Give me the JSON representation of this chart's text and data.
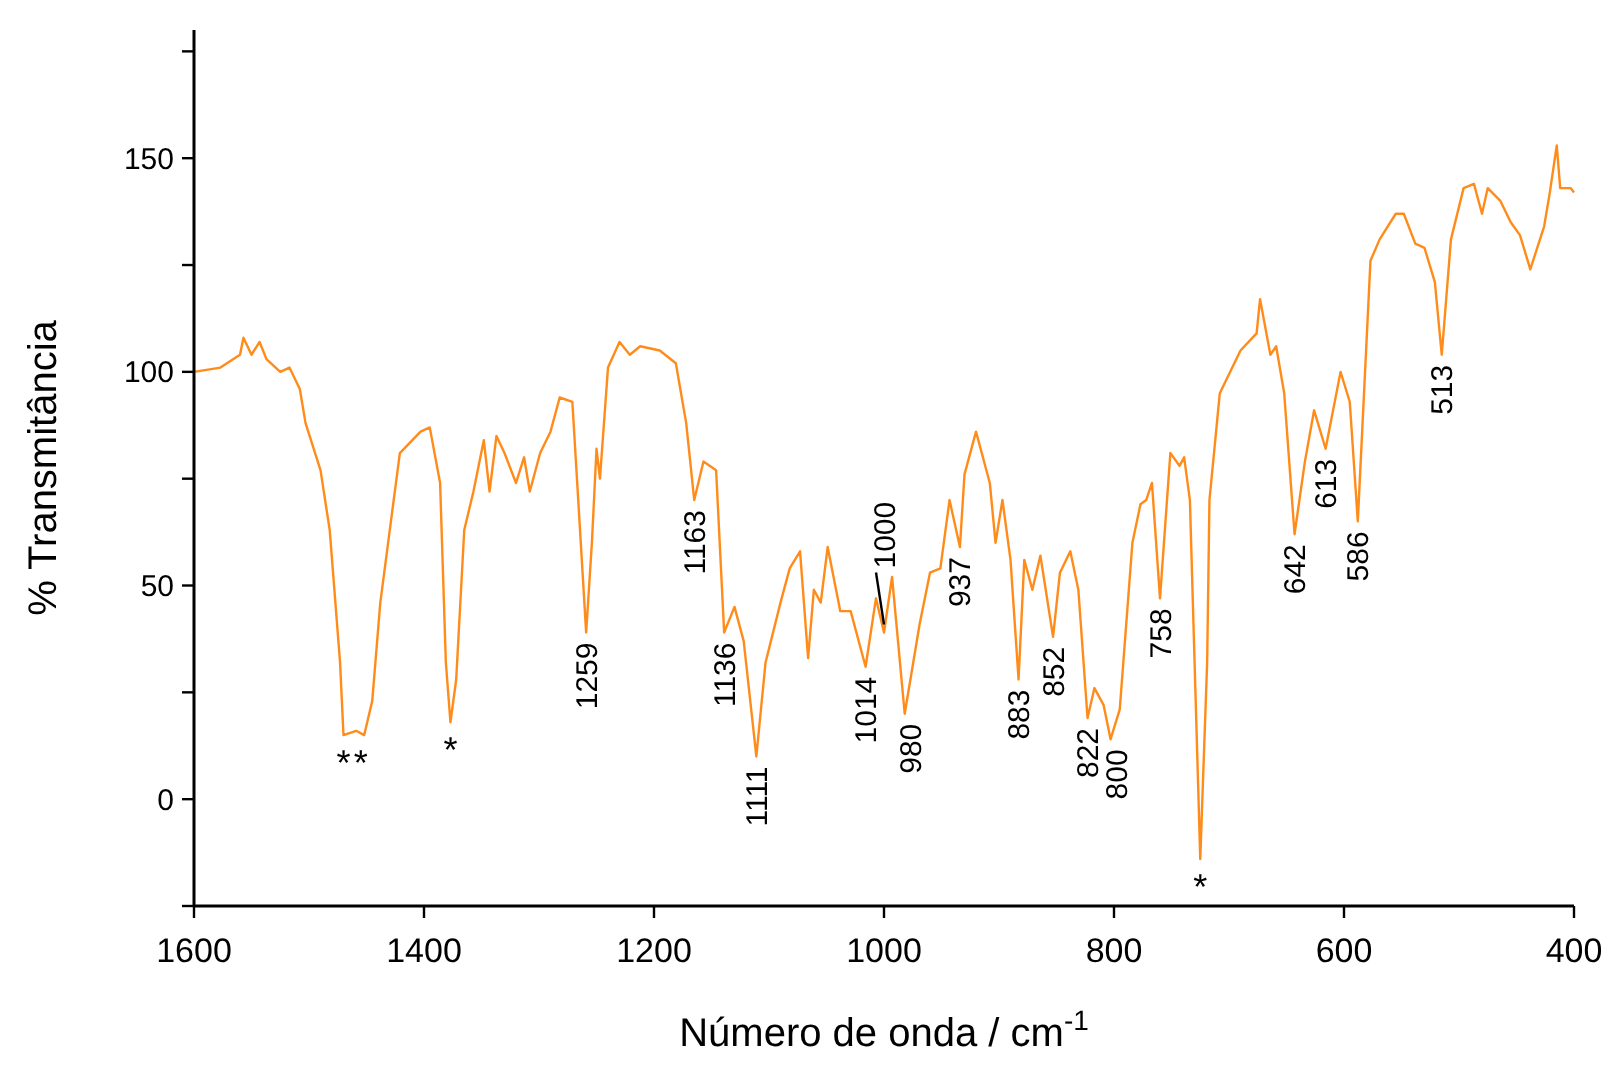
{
  "chart_data": {
    "type": "line",
    "xlabel": "Número de onda / cm$^{-1}$",
    "ylabel": "% Transmitância",
    "xlim": [
      1600,
      400
    ],
    "xticks": [
      1600,
      1400,
      1200,
      1000,
      800,
      600,
      400
    ],
    "ylim": [
      -25,
      180
    ],
    "yticks": [
      {
        "value": -25,
        "label": null
      },
      0,
      {
        "value": 25,
        "label": null
      },
      50,
      {
        "value": 75,
        "label": null
      },
      100,
      {
        "value": 125,
        "label": null
      },
      150,
      {
        "value": 175,
        "label": null
      }
    ],
    "marker": "none",
    "line_style": "solid",
    "series": [
      {
        "color": "#ff8c1a",
        "x": [
          1600,
          1577,
          1560,
          1557,
          1550,
          1543,
          1537,
          1525,
          1517,
          1508,
          1503,
          1490,
          1482,
          1473,
          1470,
          1459,
          1452,
          1445,
          1438,
          1421,
          1403,
          1395,
          1386,
          1381,
          1377,
          1372,
          1365,
          1357,
          1348,
          1343,
          1337,
          1330,
          1320,
          1313,
          1308,
          1299,
          1290,
          1282,
          1271,
          1259,
          1254,
          1250,
          1247,
          1240,
          1230,
          1221,
          1212,
          1195,
          1181,
          1172,
          1165,
          1157,
          1146,
          1139,
          1130,
          1122,
          1111,
          1103,
          1090,
          1082,
          1073,
          1066,
          1061,
          1055,
          1049,
          1038,
          1029,
          1016,
          1007,
          1000,
          993,
          982,
          969,
          960,
          951,
          943,
          934,
          930,
          920,
          908,
          903,
          897,
          890,
          883,
          878,
          871,
          864,
          853,
          847,
          838,
          831,
          823,
          817,
          809,
          803,
          795,
          784,
          777,
          772,
          767,
          760,
          751,
          743,
          739,
          734,
          725,
          719,
          717,
          708,
          690,
          676,
          673,
          664,
          659,
          652,
          643,
          634,
          626,
          616,
          603,
          595,
          588,
          577,
          569,
          555,
          548,
          538,
          530,
          521,
          515,
          507,
          496,
          487,
          480,
          475,
          464,
          455,
          447,
          438,
          426,
          421,
          415,
          412,
          403,
          400
        ],
        "values": [
          100,
          101,
          104,
          108,
          104,
          107,
          103,
          100,
          101,
          96,
          88,
          77,
          63,
          32,
          15,
          16,
          15,
          23,
          46,
          81,
          86,
          87,
          74,
          32,
          18,
          28,
          63,
          72,
          84,
          72,
          85,
          81,
          74,
          80,
          72,
          81,
          86,
          94,
          93,
          39,
          60,
          82,
          75,
          101,
          107,
          104,
          106,
          105,
          102,
          88,
          70,
          79,
          77,
          39,
          45,
          37,
          10,
          32,
          46,
          54,
          58,
          33,
          49,
          46,
          59,
          44,
          44,
          31,
          47,
          39,
          52,
          20,
          41,
          53,
          54,
          70,
          59,
          76,
          86,
          74,
          60,
          70,
          56,
          28,
          56,
          49,
          57,
          38,
          53,
          58,
          49,
          19,
          26,
          22,
          14,
          21,
          60,
          69,
          70,
          74,
          47,
          81,
          78,
          80,
          70,
          -14,
          32,
          70,
          95,
          105,
          109,
          117,
          104,
          106,
          95,
          62,
          79,
          91,
          82,
          100,
          93,
          65,
          126,
          131,
          137,
          137,
          130,
          129,
          121,
          104,
          131,
          143,
          144,
          137,
          143,
          140,
          135,
          132,
          124,
          134,
          142,
          153,
          143,
          143,
          142
        ]
      }
    ],
    "annotations": [
      {
        "text": "*",
        "x": 1470,
        "y": 15
      },
      {
        "text": "*",
        "x": 1455,
        "y": 15
      },
      {
        "text": "*",
        "x": 1377,
        "y": 18
      },
      {
        "text": "1259",
        "x": 1259,
        "y": 39
      },
      {
        "text": "1163",
        "x": 1165,
        "y": 70
      },
      {
        "text": "1136",
        "x": 1139,
        "y": 39
      },
      {
        "text": "1111",
        "x": 1111,
        "y": 10
      },
      {
        "text": "1014",
        "x": 1016,
        "y": 31
      },
      {
        "text": "1000",
        "x": 1000,
        "y": 39
      },
      {
        "text": "980",
        "x": 982,
        "y": 20
      },
      {
        "text": "937",
        "x": 934,
        "y": 59
      },
      {
        "text": "883",
        "x": 883,
        "y": 28
      },
      {
        "text": "852",
        "x": 853,
        "y": 38
      },
      {
        "text": "822",
        "x": 823,
        "y": 19
      },
      {
        "text": "800",
        "x": 803,
        "y": 14
      },
      {
        "text": "758",
        "x": 760,
        "y": 47
      },
      {
        "text": "*",
        "x": 725,
        "y": -14
      },
      {
        "text": "642",
        "x": 643,
        "y": 62
      },
      {
        "text": "613",
        "x": 616,
        "y": 82
      },
      {
        "text": "586",
        "x": 588,
        "y": 65
      },
      {
        "text": "513",
        "x": 515,
        "y": 104
      }
    ]
  }
}
